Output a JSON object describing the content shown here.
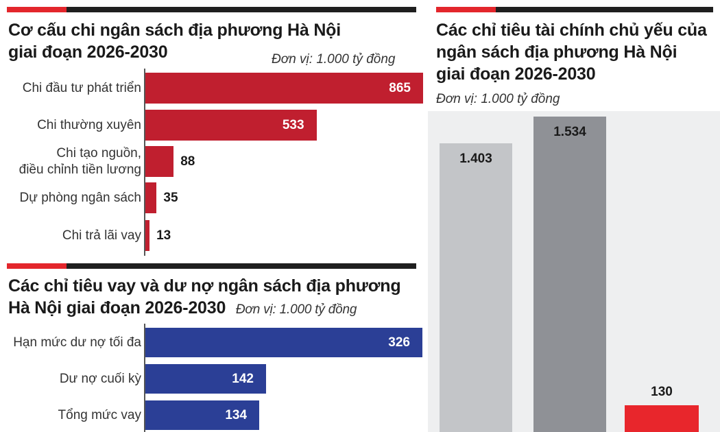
{
  "colors": {
    "red": "#c01f2f",
    "blue": "#2b3f96",
    "light_gray": "#c3c5c8",
    "dark_gray": "#8f9196",
    "bright_red": "#e8262c",
    "background_panel": "#eeeff0"
  },
  "chart_data": [
    {
      "type": "bar",
      "orientation": "horizontal",
      "title": "Cơ cấu chi ngân sách địa phương Hà Nội giai đoạn 2026-2030",
      "title_lines": [
        "Cơ cấu chi ngân sách địa phương Hà Nội",
        "giai đoạn 2026-2030"
      ],
      "unit": "Đơn vị: 1.000 tỷ đồng",
      "categories": [
        {
          "label_lines": [
            "Chi đầu tư phát triển"
          ]
        },
        {
          "label_lines": [
            "Chi thường xuyên"
          ]
        },
        {
          "label_lines": [
            "Chi tạo nguồn,",
            "điều chỉnh tiền lương"
          ]
        },
        {
          "label_lines": [
            "Dự phòng ngân sách"
          ]
        },
        {
          "label_lines": [
            "Chi trả lãi vay"
          ]
        }
      ],
      "values": [
        865,
        533,
        88,
        35,
        13
      ],
      "value_labels": [
        "865",
        "533",
        "88",
        "35",
        "13"
      ],
      "xlim": [
        0,
        865
      ]
    },
    {
      "type": "bar",
      "orientation": "horizontal",
      "title": "Các chỉ tiêu vay và dư nợ ngân sách địa phương Hà Nội giai đoạn 2026-2030",
      "title_lines": [
        "Các chỉ tiêu vay và dư nợ ngân sách địa phương",
        "Hà Nội giai đoạn 2026-2030"
      ],
      "unit": "Đơn vị: 1.000 tỷ đồng",
      "categories": [
        {
          "label_lines": [
            "Hạn mức dư nợ tối đa"
          ]
        },
        {
          "label_lines": [
            "Dư nợ cuối kỳ"
          ]
        },
        {
          "label_lines": [
            "Tổng mức vay"
          ]
        }
      ],
      "values": [
        326,
        142,
        134
      ],
      "value_labels": [
        "326",
        "142",
        "134"
      ],
      "xlim": [
        0,
        326
      ]
    },
    {
      "type": "bar",
      "orientation": "vertical",
      "title": "Các chỉ tiêu tài chính chủ yếu của ngân sách địa phương Hà Nội giai đoạn 2026-2030",
      "title_lines": [
        "Các chỉ tiêu tài chính chủ yếu của",
        "ngân sách địa phương Hà Nội",
        "giai đoạn 2026-2030"
      ],
      "unit": "Đơn vị: 1.000 tỷ đồng",
      "values": [
        1403,
        1534,
        130
      ],
      "value_labels": [
        "1.403",
        "1.534",
        "130"
      ]
    }
  ]
}
